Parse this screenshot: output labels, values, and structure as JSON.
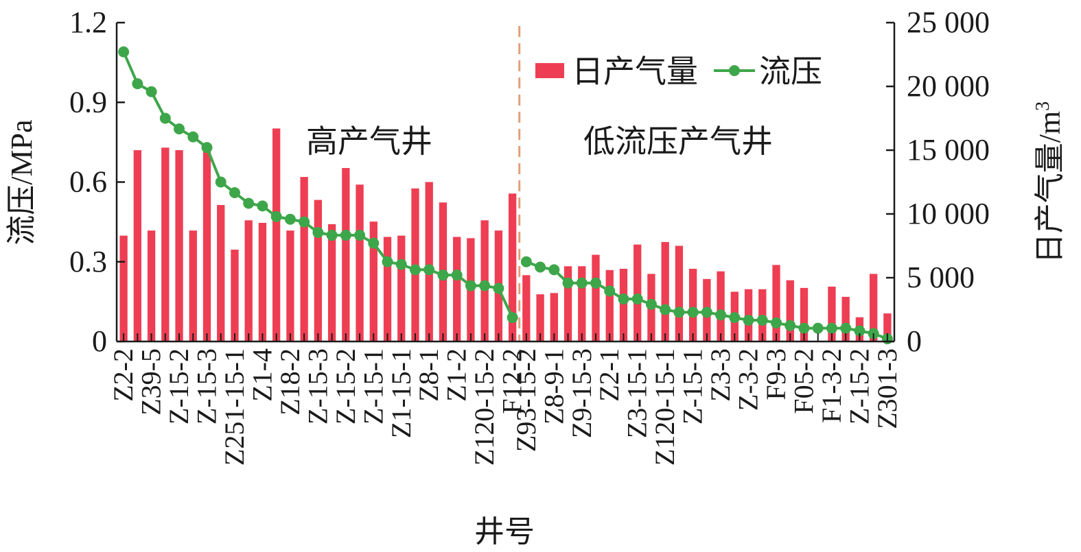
{
  "chart_data": {
    "type": "bar+line",
    "xlabel": "井号",
    "ylabel_left": "流压/MPa",
    "ylabel_right_base": "日产气量/m",
    "ylabel_right_sup": "3",
    "ylim_left": [
      0,
      1.2
    ],
    "ylim_right": [
      0,
      25000
    ],
    "left_ticks": [
      0,
      0.3,
      0.6,
      0.9,
      1.2
    ],
    "left_tick_labels": [
      "0",
      "0.3",
      "0.6",
      "0.9",
      "1.2"
    ],
    "right_ticks": [
      0,
      5000,
      10000,
      15000,
      20000,
      25000
    ],
    "right_tick_labels": [
      "0",
      "5 000",
      "10 000",
      "15 000",
      "20 000",
      "25 000"
    ],
    "legend": {
      "placement": "top-right",
      "bar": "日产气量",
      "line": "流压"
    },
    "regions": [
      "高产气井",
      "低流压产气井"
    ],
    "divider_after_index": 28,
    "colors": {
      "bar": "#ee3e53",
      "line": "#3ea64a",
      "divider": "#e0a07a"
    },
    "x_labels": [
      "Z2-2",
      "",
      "Z39-5",
      "",
      "Z-15-2",
      "",
      "Z-15-3",
      "",
      "Z251-15-1",
      "",
      "Z1-4",
      "",
      "Z18-2",
      "",
      "Z-15-3",
      "",
      "Z-15-2",
      "",
      "Z-15-1",
      "",
      "Z1-15-1",
      "",
      "Z8-1",
      "",
      "Z1-2",
      "",
      "Z120-15-2",
      "",
      "F12-2",
      "Z93-15-2",
      "",
      "Z8-9-1",
      "",
      "Z9-15-3",
      "",
      "Z2-1",
      "",
      "Z3-15-1",
      "",
      "Z120-15-1",
      "",
      "Z-15-1",
      "",
      "Z3-3",
      "",
      "Z-3-2",
      "",
      "F9-3",
      "",
      "F05-2",
      "",
      "F1-3-2",
      "",
      "Z-15-2",
      "",
      "Z301-3"
    ],
    "series": [
      {
        "name": "日产气量",
        "axis": "right",
        "values": [
          8300,
          15000,
          8700,
          15200,
          15000,
          8700,
          15000,
          10700,
          7200,
          9500,
          9300,
          16700,
          8700,
          12900,
          11100,
          9200,
          13600,
          12300,
          9400,
          8200,
          8300,
          12000,
          12500,
          10900,
          8200,
          8100,
          9500,
          8700,
          11600,
          5200,
          3700,
          3800,
          5900,
          5900,
          6800,
          5600,
          5700,
          7600,
          5300,
          7800,
          7500,
          5700,
          4900,
          5500,
          3900,
          4100,
          4100,
          6000,
          4800,
          4200,
          0,
          4300,
          3500,
          1900,
          5300,
          2200
        ]
      },
      {
        "name": "流压",
        "axis": "left",
        "values": [
          1.09,
          0.97,
          0.94,
          0.84,
          0.8,
          0.77,
          0.73,
          0.6,
          0.56,
          0.52,
          0.51,
          0.47,
          0.46,
          0.45,
          0.41,
          0.4,
          0.4,
          0.4,
          0.37,
          0.3,
          0.29,
          0.27,
          0.27,
          0.25,
          0.25,
          0.21,
          0.21,
          0.2,
          0.09,
          0.3,
          0.28,
          0.27,
          0.22,
          0.22,
          0.22,
          0.19,
          0.16,
          0.16,
          0.14,
          0.12,
          0.11,
          0.11,
          0.11,
          0.1,
          0.09,
          0.08,
          0.08,
          0.07,
          0.06,
          0.05,
          0.05,
          0.05,
          0.05,
          0.04,
          0.03,
          0.01
        ]
      }
    ]
  }
}
